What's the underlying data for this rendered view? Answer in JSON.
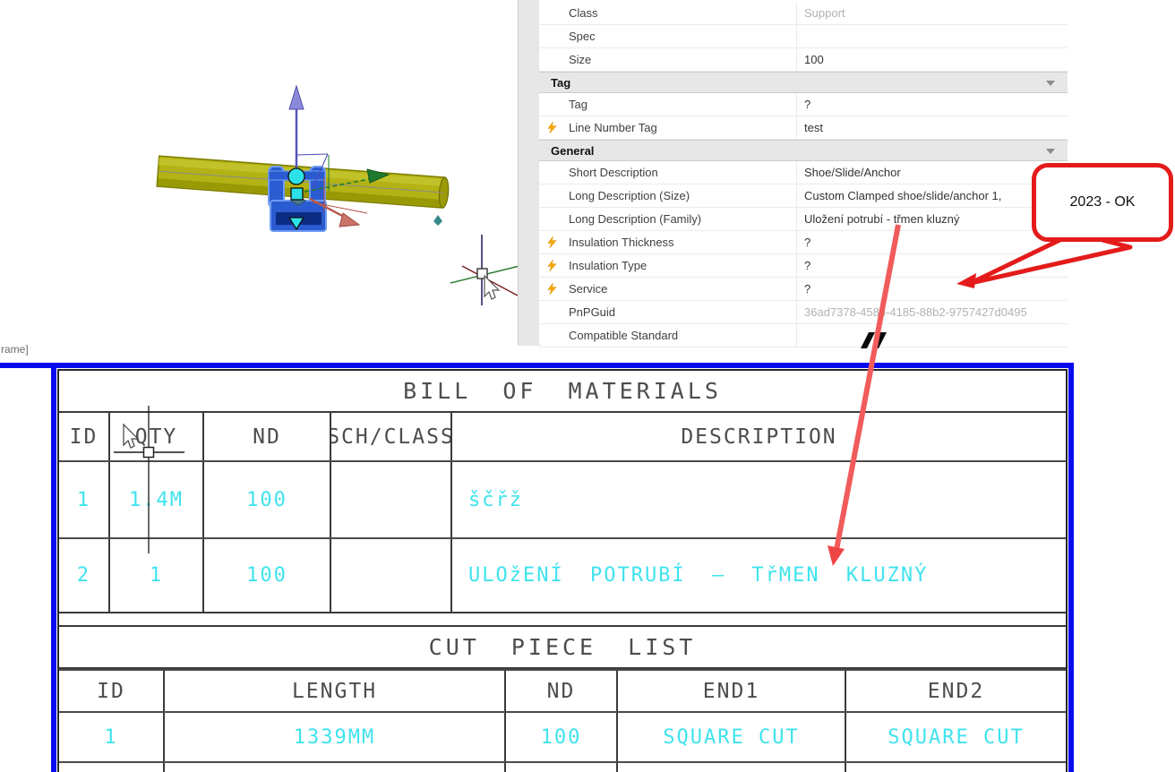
{
  "colors": {
    "frame_blue": "#0a0af0",
    "cad_cyan": "#3fe3ee",
    "cad_gray": "#4d4d4d",
    "callout_red": "#e41b1b",
    "arrow_red": "#f15b5b",
    "lightning_orange": "#f7a800"
  },
  "viewport": {
    "partial_label": "rame]"
  },
  "properties_panel": {
    "items": [
      {
        "type": "row",
        "label": "Class",
        "value": "Support",
        "muted": true,
        "lightning": false
      },
      {
        "type": "row",
        "label": "Spec",
        "value": "",
        "muted": false,
        "lightning": false
      },
      {
        "type": "row",
        "label": "Size",
        "value": "100",
        "muted": false,
        "lightning": false
      },
      {
        "type": "section",
        "label": "Tag"
      },
      {
        "type": "row",
        "label": "Tag",
        "value": "?",
        "muted": false,
        "lightning": false
      },
      {
        "type": "row",
        "label": "Line Number Tag",
        "value": "test",
        "muted": false,
        "lightning": true
      },
      {
        "type": "section",
        "label": "General"
      },
      {
        "type": "row",
        "label": "Short Description",
        "value": "Shoe/Slide/Anchor",
        "muted": false,
        "lightning": false
      },
      {
        "type": "row",
        "label": "Long Description (Size)",
        "value": "Custom Clamped shoe/slide/anchor 1,",
        "muted": false,
        "lightning": false
      },
      {
        "type": "row",
        "label": "Long Description (Family)",
        "value": "Uložení potrubí - třmen kluzný",
        "muted": false,
        "lightning": false
      },
      {
        "type": "row",
        "label": "Insulation Thickness",
        "value": "?",
        "muted": false,
        "lightning": true
      },
      {
        "type": "row",
        "label": "Insulation Type",
        "value": "?",
        "muted": false,
        "lightning": true
      },
      {
        "type": "row",
        "label": "Service",
        "value": "?",
        "muted": false,
        "lightning": true
      },
      {
        "type": "row",
        "label": "PnPGuid",
        "value": "36ad7378-4585-4185-88b2-9757427d0495",
        "muted": true,
        "lightning": false
      },
      {
        "type": "row",
        "label": "Compatible Standard",
        "value": "",
        "muted": false,
        "lightning": false
      }
    ]
  },
  "callout": {
    "text": "2023 - OK"
  },
  "bom_table": {
    "title": "BILL OF MATERIALS",
    "columns": [
      "ID",
      "QTY",
      "ND",
      "SCH/CLASS",
      "DESCRIPTION"
    ],
    "rows": [
      [
        "1",
        "1.4M",
        "100",
        "",
        "ščřž"
      ],
      [
        "2",
        "1",
        "100",
        "",
        "ULOžENÍ POTRUBÍ – TřMEN KLUZNÝ"
      ]
    ]
  },
  "cut_piece_table": {
    "title": "CUT PIECE LIST",
    "columns": [
      "ID",
      "LENGTH",
      "ND",
      "END1",
      "END2"
    ],
    "rows": [
      [
        "1",
        "1339MM",
        "100",
        "SQUARE CUT",
        "SQUARE CUT"
      ]
    ]
  }
}
